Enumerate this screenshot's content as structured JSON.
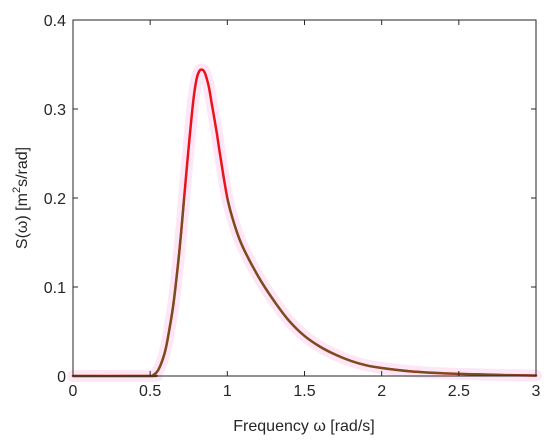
{
  "chart_data": {
    "type": "line",
    "title": "",
    "xlabel": "Frequency ω [rad/s]",
    "ylabel_parts": [
      "S(ω) [m",
      "2",
      "s/rad]"
    ],
    "xlim": [
      0,
      3
    ],
    "ylim": [
      0,
      0.4
    ],
    "x_ticks": [
      0,
      0.5,
      1,
      1.5,
      2,
      2.5,
      3
    ],
    "x_tick_labels": [
      "0",
      "0.5",
      "1",
      "1.5",
      "2",
      "2.5",
      "3"
    ],
    "y_ticks": [
      0,
      0.1,
      0.2,
      0.3,
      0.4
    ],
    "y_tick_labels": [
      "0",
      "0.1",
      "0.2",
      "0.3",
      "0.4"
    ],
    "grid": false,
    "series": [
      {
        "color": "#e8141c",
        "x": [
          0.0,
          0.5,
          0.52,
          0.55,
          0.58,
          0.6,
          0.62,
          0.65,
          0.68,
          0.7,
          0.72,
          0.75,
          0.78,
          0.8,
          0.82,
          0.84,
          0.85,
          0.86,
          0.88,
          0.9,
          0.93,
          0.95,
          1.0,
          1.05,
          1.1,
          1.2,
          1.3,
          1.4,
          1.5,
          1.6,
          1.7,
          1.8,
          1.9,
          2.0,
          2.2,
          2.4,
          2.6,
          2.8,
          3.0
        ],
        "y": [
          0.0,
          0.0,
          0.001,
          0.006,
          0.018,
          0.03,
          0.048,
          0.08,
          0.125,
          0.16,
          0.2,
          0.258,
          0.31,
          0.333,
          0.343,
          0.344,
          0.342,
          0.338,
          0.325,
          0.305,
          0.275,
          0.252,
          0.2,
          0.168,
          0.145,
          0.112,
          0.085,
          0.062,
          0.045,
          0.033,
          0.024,
          0.017,
          0.012,
          0.009,
          0.005,
          0.003,
          0.002,
          0.001,
          0.0005
        ]
      }
    ],
    "colors": {
      "curve": "#e8141c",
      "curve_shade": "#5e5a1f",
      "tint": "#fde6f6",
      "axis": "#262626"
    }
  }
}
